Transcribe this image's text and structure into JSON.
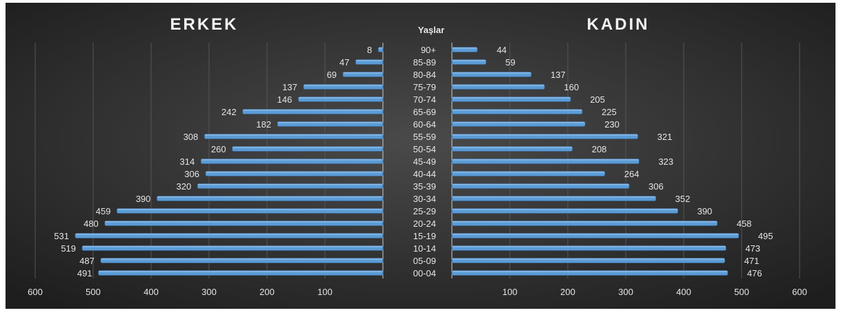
{
  "chart_data": {
    "type": "bar",
    "orientation": "horizontal",
    "layout": "population-pyramid",
    "categories_label": "Yaşlar",
    "categories": [
      "90+",
      "85-89",
      "80-84",
      "75-79",
      "70-74",
      "65-69",
      "60-64",
      "55-59",
      "50-54",
      "45-49",
      "40-44",
      "35-39",
      "30-34",
      "25-29",
      "20-24",
      "15-19",
      "10-14",
      "05-09",
      "00-04"
    ],
    "series": [
      {
        "name": "ERKEK",
        "side": "left",
        "values": [
          8,
          47,
          69,
          137,
          146,
          242,
          182,
          308,
          260,
          314,
          306,
          320,
          390,
          459,
          480,
          531,
          519,
          487,
          491
        ]
      },
      {
        "name": "KADIN",
        "side": "right",
        "values": [
          44,
          59,
          137,
          160,
          205,
          225,
          230,
          321,
          208,
          323,
          264,
          306,
          352,
          390,
          458,
          495,
          473,
          471,
          476
        ]
      }
    ],
    "x_ticks_left": [
      600,
      500,
      400,
      300,
      200,
      100
    ],
    "x_ticks_right": [
      100,
      200,
      300,
      400,
      500,
      600
    ],
    "xlim": [
      0,
      600
    ],
    "grid": true,
    "colors": {
      "background": "#2f2f2f",
      "bar": "#5b9bd5",
      "bar_highlight": "#9ec8f2",
      "text": "#e6e6e6",
      "title": "#f2f2f2",
      "grid": "#555555"
    }
  }
}
